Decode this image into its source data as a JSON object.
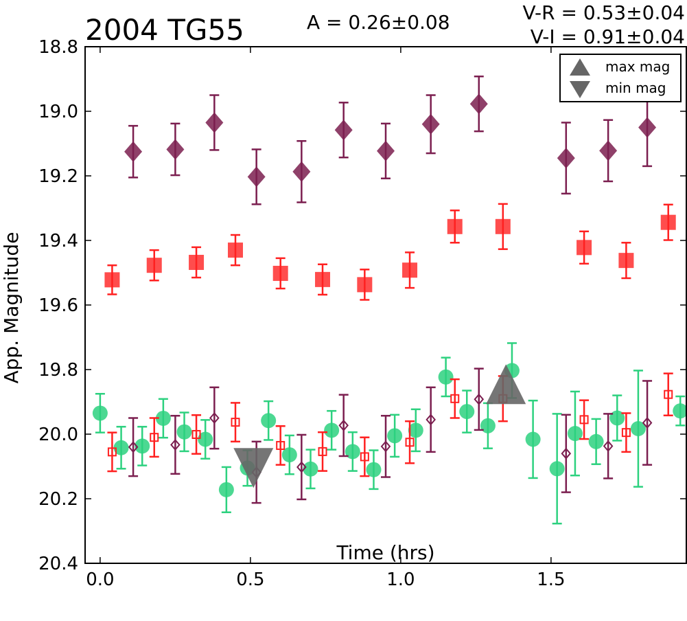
{
  "chart_data": {
    "type": "scatter",
    "title": "2004 TG55",
    "annotations": {
      "amplitude": "A  = 0.26±0.08",
      "v_r": "V-R = 0.53±0.04",
      "v_i": "V-I  = 0.91±0.04"
    },
    "xlabel": "Time (hrs)",
    "ylabel": "App. Magnitude",
    "xlim": [
      -0.05,
      1.95
    ],
    "ylim": [
      20.4,
      18.8
    ],
    "y_inverted": true,
    "x_ticks": [
      "0.0",
      "0.5",
      "1.0",
      "1.5"
    ],
    "x_tick_values": [
      0.0,
      0.5,
      1.0,
      1.5
    ],
    "y_ticks": [
      "18.8",
      "19.0",
      "19.2",
      "19.4",
      "19.6",
      "19.8",
      "20.0",
      "20.2",
      "20.4"
    ],
    "y_tick_values": [
      18.8,
      19.0,
      19.2,
      19.4,
      19.6,
      19.8,
      20.0,
      20.2,
      20.4
    ],
    "grid": false,
    "legend": {
      "position": "top-right",
      "entries": [
        {
          "label": "max mag",
          "marker": "triangle-up",
          "color": "#666666"
        },
        {
          "label": "min mag",
          "marker": "triangle-down",
          "color": "#666666"
        }
      ]
    },
    "colors": {
      "i_band": "#7b1e4f",
      "r_band": "#ff2020",
      "v_band": "#2dd17f",
      "markers": "#666666"
    },
    "series": [
      {
        "band": "I",
        "marker": "diamond",
        "color": "#7b1e4f",
        "x": [
          0.11,
          0.25,
          0.38,
          0.52,
          0.67,
          0.81,
          0.95,
          1.1,
          1.26,
          1.55,
          1.69,
          1.82
        ],
        "y": [
          19.125,
          19.118,
          19.035,
          19.203,
          19.187,
          19.058,
          19.123,
          19.04,
          18.977,
          19.145,
          19.122,
          19.05
        ],
        "err": [
          0.08,
          0.08,
          0.085,
          0.085,
          0.095,
          0.085,
          0.085,
          0.09,
          0.085,
          0.11,
          0.095,
          0.12
        ]
      },
      {
        "band": "R",
        "marker": "square",
        "color": "#ff2020",
        "x": [
          0.04,
          0.18,
          0.32,
          0.45,
          0.6,
          0.74,
          0.88,
          1.03,
          1.18,
          1.34,
          1.61,
          1.75,
          1.89
        ],
        "y": [
          19.522,
          19.477,
          19.468,
          19.43,
          19.502,
          19.521,
          19.537,
          19.492,
          19.357,
          19.357,
          19.422,
          19.462,
          19.344
        ],
        "err": [
          0.045,
          0.047,
          0.047,
          0.047,
          0.047,
          0.047,
          0.047,
          0.055,
          0.05,
          0.07,
          0.05,
          0.055,
          0.055
        ]
      },
      {
        "band": "V",
        "marker": "circle",
        "color": "#2dd17f",
        "x": [
          0.0,
          0.07,
          0.14,
          0.21,
          0.28,
          0.35,
          0.42,
          0.49,
          0.56,
          0.63,
          0.7,
          0.77,
          0.84,
          0.91,
          0.98,
          1.05,
          1.15,
          1.22,
          1.29,
          1.37,
          1.44,
          1.52,
          1.58,
          1.65,
          1.72,
          1.79,
          1.93
        ],
        "y": [
          19.935,
          20.042,
          20.037,
          19.951,
          19.993,
          20.016,
          20.172,
          20.105,
          19.958,
          20.064,
          20.108,
          19.988,
          20.054,
          20.11,
          20.005,
          19.988,
          19.823,
          19.93,
          19.974,
          19.803,
          20.016,
          20.107,
          19.998,
          20.023,
          19.95,
          19.983,
          19.928
        ],
        "err": [
          0.06,
          0.065,
          0.06,
          0.06,
          0.06,
          0.06,
          0.07,
          0.055,
          0.06,
          0.06,
          0.06,
          0.06,
          0.06,
          0.06,
          0.065,
          0.065,
          0.06,
          0.065,
          0.07,
          0.085,
          0.12,
          0.17,
          0.13,
          0.07,
          0.07,
          0.18,
          0.045
        ]
      },
      {
        "band": "R (shifted)",
        "marker": "open-square",
        "color": "#ff2020",
        "x": [
          0.04,
          0.18,
          0.32,
          0.45,
          0.6,
          0.74,
          0.88,
          1.03,
          1.18,
          1.34,
          1.61,
          1.75,
          1.89
        ],
        "y": [
          20.055,
          20.01,
          20.001,
          19.963,
          20.035,
          20.054,
          20.07,
          20.025,
          19.89,
          19.89,
          19.955,
          19.995,
          19.877
        ],
        "err": [
          0.06,
          0.06,
          0.06,
          0.06,
          0.06,
          0.06,
          0.06,
          0.065,
          0.06,
          0.07,
          0.06,
          0.06,
          0.065
        ]
      },
      {
        "band": "I (shifted)",
        "marker": "open-diamond",
        "color": "#7b1e4f",
        "x": [
          0.11,
          0.25,
          0.38,
          0.52,
          0.67,
          0.81,
          0.95,
          1.1,
          1.26,
          1.55,
          1.69,
          1.82
        ],
        "y": [
          20.04,
          20.033,
          19.95,
          20.118,
          20.102,
          19.973,
          20.038,
          19.955,
          19.892,
          20.06,
          20.037,
          19.965
        ],
        "err": [
          0.09,
          0.09,
          0.095,
          0.095,
          0.1,
          0.095,
          0.095,
          0.1,
          0.095,
          0.12,
          0.1,
          0.13
        ]
      }
    ],
    "extrema": [
      {
        "type": "max mag",
        "marker": "triangle-up",
        "x": 1.35,
        "y": 19.86
      },
      {
        "type": "min mag",
        "marker": "triangle-down",
        "x": 0.51,
        "y": 20.09
      }
    ]
  }
}
